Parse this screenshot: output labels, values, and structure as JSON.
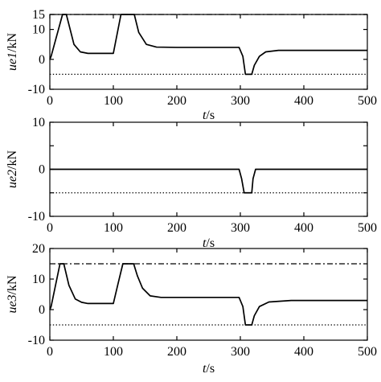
{
  "figure": {
    "background": "#ffffff",
    "line_color": "#000000"
  },
  "chart_data": [
    {
      "type": "line",
      "title": "",
      "xlabel_italic": "t",
      "xlabel_unit": "/s",
      "ylabel_italic": "ue1",
      "ylabel_unit": "/kN",
      "xlim": [
        0,
        500
      ],
      "ylim": [
        -10,
        15
      ],
      "xticks": [
        0,
        100,
        200,
        300,
        400,
        500
      ],
      "yticks": [
        -10,
        0,
        10,
        15
      ],
      "grid": false,
      "series": [
        {
          "style": "solid",
          "x": [
            0,
            2,
            20,
            26,
            38,
            48,
            60,
            100,
            112,
            133,
            140,
            152,
            168,
            200,
            240,
            298,
            304,
            308,
            318,
            322,
            330,
            340,
            360,
            500
          ],
          "y": [
            0,
            1,
            15,
            15,
            5,
            2.5,
            2,
            2,
            15,
            15,
            9,
            5,
            4.1,
            4,
            4,
            4,
            1,
            -5,
            -5,
            -2,
            1,
            2.5,
            3,
            3
          ]
        },
        {
          "style": "dashdot",
          "x": [
            0,
            500
          ],
          "y": [
            15,
            15
          ]
        },
        {
          "style": "dotted",
          "x": [
            0,
            500
          ],
          "y": [
            -5,
            -5
          ]
        }
      ]
    },
    {
      "type": "line",
      "title": "",
      "xlabel_italic": "t",
      "xlabel_unit": "/s",
      "ylabel_italic": "ue2",
      "ylabel_unit": "/kN",
      "xlim": [
        0,
        500
      ],
      "ylim": [
        -10,
        10
      ],
      "xticks": [
        0,
        100,
        200,
        300,
        400,
        500
      ],
      "yticks": [
        -10,
        -5,
        0,
        5,
        10
      ],
      "ytick_labels": [
        "-10",
        "",
        "0",
        "",
        "10"
      ],
      "grid": false,
      "series": [
        {
          "style": "solid",
          "x": [
            0,
            298,
            302,
            306,
            318,
            320,
            324,
            500
          ],
          "y": [
            0,
            0,
            -2,
            -5,
            -5,
            -2,
            0,
            0
          ]
        },
        {
          "style": "dotted",
          "x": [
            0,
            500
          ],
          "y": [
            -5,
            -5
          ]
        }
      ]
    },
    {
      "type": "line",
      "title": "",
      "xlabel_italic": "t",
      "xlabel_unit": "/s",
      "ylabel_italic": "ue3",
      "ylabel_unit": "/kN",
      "xlim": [
        0,
        500
      ],
      "ylim": [
        -10,
        20
      ],
      "xticks": [
        0,
        100,
        200,
        300,
        400,
        500
      ],
      "yticks": [
        -10,
        0,
        10,
        20
      ],
      "grid": false,
      "series": [
        {
          "style": "solid",
          "x": [
            0,
            2,
            16,
            22,
            30,
            40,
            50,
            60,
            100,
            108,
            115,
            132,
            138,
            146,
            158,
            175,
            200,
            240,
            298,
            304,
            308,
            318,
            322,
            330,
            345,
            380,
            500
          ],
          "y": [
            0,
            1,
            15,
            15,
            8,
            3.5,
            2.4,
            2,
            2,
            9,
            15,
            15,
            11,
            7,
            4.5,
            4,
            4,
            4,
            4,
            1,
            -5,
            -5,
            -2,
            1,
            2.5,
            3,
            3
          ]
        },
        {
          "style": "dashdot",
          "x": [
            0,
            500
          ],
          "y": [
            15,
            15
          ]
        },
        {
          "style": "dotted",
          "x": [
            0,
            500
          ],
          "y": [
            -5,
            -5
          ]
        }
      ]
    }
  ]
}
